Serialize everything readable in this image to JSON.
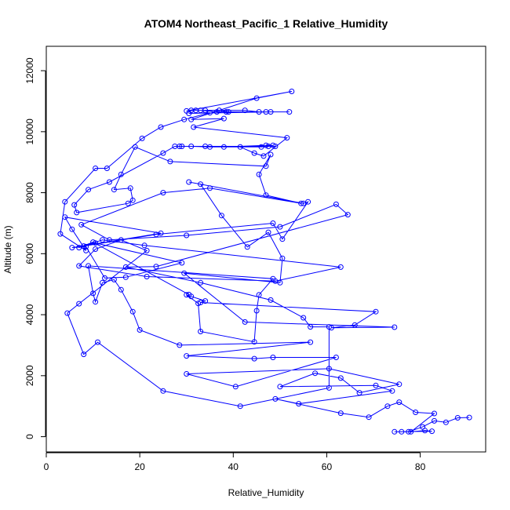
{
  "chart_data": {
    "type": "line",
    "title": "ATOM4 Northeast_Pacific_1 Relative_Humidity",
    "xlabel": "Relative_Humidity",
    "ylabel": "Altitude (m)",
    "xlim": [
      0,
      94
    ],
    "ylim": [
      -500,
      12800
    ],
    "x_ticks": [
      0,
      20,
      40,
      60,
      80
    ],
    "y_ticks": [
      0,
      2000,
      4000,
      6000,
      8000,
      10000,
      12000
    ],
    "grid": false,
    "series_color": "#0000ff",
    "series": [
      {
        "marker": "open-circle",
        "points": [
          [
            90.5,
            630
          ],
          [
            88,
            620
          ],
          [
            85.5,
            470
          ],
          [
            83,
            520
          ],
          [
            80.5,
            320
          ],
          [
            77.5,
            160
          ],
          [
            76,
            160
          ],
          [
            74.5,
            160
          ],
          [
            82.5,
            180
          ],
          [
            81,
            200
          ],
          [
            78,
            160
          ],
          [
            83,
            760
          ],
          [
            79,
            800
          ],
          [
            75.5,
            1130
          ],
          [
            73,
            1000
          ],
          [
            69,
            640
          ],
          [
            63,
            770
          ],
          [
            49,
            1240
          ],
          [
            54,
            1080
          ],
          [
            74,
            1500
          ],
          [
            70.5,
            1680
          ],
          [
            50,
            1640
          ],
          [
            57.5,
            2080
          ],
          [
            63,
            1920
          ],
          [
            67,
            1440
          ],
          [
            75.5,
            1720
          ],
          [
            60.5,
            2230
          ],
          [
            30,
            2060
          ],
          [
            40.5,
            1640
          ],
          [
            62,
            2600
          ],
          [
            48.5,
            2600
          ],
          [
            44.5,
            2560
          ],
          [
            30,
            2650
          ],
          [
            56.5,
            3100
          ],
          [
            28.5,
            3000
          ],
          [
            20,
            3500
          ],
          [
            18.5,
            4100
          ],
          [
            16,
            4820
          ],
          [
            14.5,
            5150
          ],
          [
            12,
            5050
          ],
          [
            10.5,
            4420
          ],
          [
            10,
            4700
          ],
          [
            9,
            5600
          ],
          [
            48.5,
            5180
          ],
          [
            45.5,
            4650
          ],
          [
            45,
            4130
          ],
          [
            44.5,
            3110
          ],
          [
            33,
            3450
          ],
          [
            32.5,
            4370
          ],
          [
            30,
            4650
          ],
          [
            31,
            4600
          ],
          [
            34,
            4450
          ],
          [
            33,
            4400
          ],
          [
            70.5,
            4100
          ],
          [
            66,
            3660
          ],
          [
            61,
            3570
          ],
          [
            74.5,
            3590
          ],
          [
            42.5,
            3760
          ],
          [
            29.5,
            5360
          ],
          [
            50,
            5050
          ],
          [
            50.5,
            5850
          ],
          [
            47.5,
            6700
          ],
          [
            43,
            6220
          ],
          [
            37.5,
            7250
          ],
          [
            33,
            8280
          ],
          [
            30.5,
            8350
          ],
          [
            55,
            7650
          ],
          [
            56,
            7700
          ],
          [
            50.5,
            6480
          ],
          [
            48.5,
            7000
          ],
          [
            23.5,
            6630
          ],
          [
            8,
            6250
          ],
          [
            10.5,
            6350
          ],
          [
            29,
            5700
          ],
          [
            17,
            5230
          ],
          [
            12.5,
            5200
          ],
          [
            8.5,
            6230
          ],
          [
            5.5,
            6200
          ],
          [
            24.5,
            6670
          ],
          [
            4,
            7200
          ],
          [
            5.5,
            6800
          ],
          [
            8.5,
            6100
          ],
          [
            3,
            6650
          ],
          [
            4,
            7700
          ],
          [
            10.5,
            8800
          ],
          [
            13,
            8800
          ],
          [
            20.5,
            9780
          ],
          [
            24.5,
            10150
          ],
          [
            29.5,
            10400
          ],
          [
            35,
            10620
          ],
          [
            30.5,
            10600
          ],
          [
            48,
            10650
          ],
          [
            52,
            10650
          ],
          [
            47,
            10650
          ],
          [
            38.5,
            10650
          ],
          [
            36.5,
            10650
          ],
          [
            33,
            10700
          ],
          [
            31,
            10700
          ],
          [
            34,
            10700
          ],
          [
            42.5,
            10700
          ],
          [
            45.5,
            10650
          ],
          [
            39,
            10650
          ],
          [
            37,
            10700
          ],
          [
            32,
            10700
          ],
          [
            30,
            10680
          ],
          [
            52.5,
            11320
          ],
          [
            45,
            11100
          ],
          [
            31,
            10400
          ],
          [
            38,
            10430
          ],
          [
            31.5,
            10150
          ],
          [
            51.5,
            9800
          ],
          [
            46.5,
            9200
          ],
          [
            44.5,
            9300
          ],
          [
            41.5,
            9500
          ],
          [
            47.5,
            9520
          ],
          [
            49,
            9520
          ],
          [
            29,
            9520
          ],
          [
            28.5,
            9520
          ],
          [
            31,
            9520
          ],
          [
            35,
            9500
          ],
          [
            46,
            9500
          ],
          [
            48.5,
            9550
          ],
          [
            47,
            9550
          ],
          [
            38,
            9500
          ],
          [
            34,
            9520
          ],
          [
            27.5,
            9520
          ],
          [
            25,
            9300
          ],
          [
            13.5,
            8350
          ],
          [
            9,
            8100
          ],
          [
            6,
            7600
          ],
          [
            6.5,
            7350
          ],
          [
            17.5,
            7650
          ],
          [
            18.5,
            7750
          ],
          [
            18,
            8150
          ],
          [
            14.5,
            8100
          ],
          [
            16,
            8600
          ],
          [
            19,
            9500
          ],
          [
            26.5,
            9020
          ],
          [
            47,
            8870
          ],
          [
            48,
            9250
          ],
          [
            45.5,
            8600
          ],
          [
            47,
            7920
          ],
          [
            54.5,
            7650
          ],
          [
            35,
            8150
          ],
          [
            25,
            8000
          ],
          [
            7.5,
            6950
          ],
          [
            13.5,
            6450
          ],
          [
            30,
            6600
          ],
          [
            50,
            6880
          ],
          [
            62,
            7620
          ],
          [
            64.5,
            7280
          ],
          [
            23.5,
            5580
          ],
          [
            17,
            5560
          ],
          [
            33,
            5050
          ],
          [
            48,
            4480
          ],
          [
            55,
            3900
          ],
          [
            56.5,
            3600
          ],
          [
            60.5,
            3600
          ],
          [
            60.5,
            1600
          ],
          [
            41.5,
            1000
          ],
          [
            25,
            1500
          ],
          [
            11,
            3100
          ],
          [
            8,
            2700
          ],
          [
            4.5,
            4050
          ],
          [
            7,
            4360
          ],
          [
            21.5,
            6100
          ],
          [
            16,
            6450
          ],
          [
            10.5,
            6150
          ],
          [
            7,
            5600
          ],
          [
            21.5,
            5250
          ],
          [
            49,
            5100
          ],
          [
            63,
            5560
          ],
          [
            21,
            6270
          ],
          [
            12,
            6450
          ],
          [
            7,
            6200
          ],
          [
            10,
            6380
          ],
          [
            30.5,
            4660
          ]
        ]
      }
    ]
  }
}
